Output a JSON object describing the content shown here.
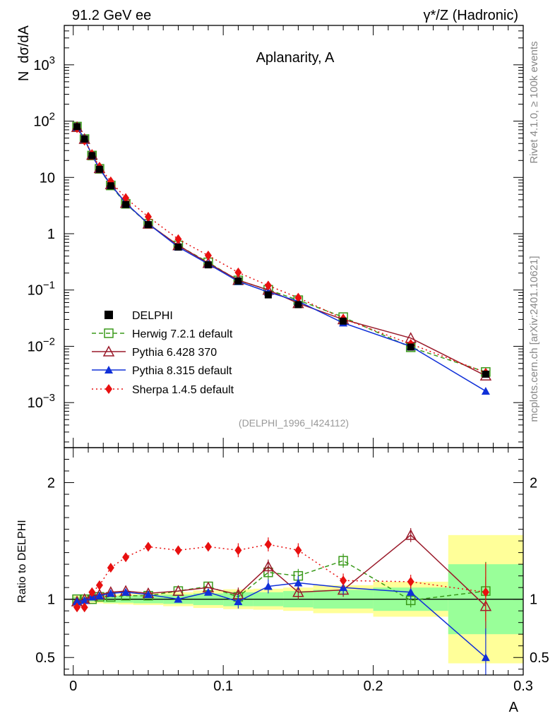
{
  "header": {
    "left": "91.2 GeV ee",
    "right": "γ*/Z (Hadronic)"
  },
  "side_text": {
    "rivet": "Rivet 4.1.0, ≥ 100k events",
    "mcplots": "mcplots.cern.ch [arXiv:2401.10621]"
  },
  "chart_data": {
    "type": "line",
    "title": "Aplanarity, A",
    "xlabel": "A",
    "ylabel_top": "N  dσ/dA",
    "ylabel_bottom": "Ratio to DELPHI",
    "analysis_id": "(DELPHI_1996_I424112)",
    "xlim": [
      -0.006,
      0.3
    ],
    "ylim_top_log10": [
      -3.8,
      3.7
    ],
    "ylim_bottom": [
      0.35,
      2.3
    ],
    "x_ticks": [
      "0",
      "0.1",
      "0.2",
      "0.3"
    ],
    "y_ticks_top": [
      {
        "base": "10",
        "exp": "−3",
        "v": 0.001
      },
      {
        "base": "10",
        "exp": "−2",
        "v": 0.01
      },
      {
        "base": "10",
        "exp": "−1",
        "v": 0.1
      },
      {
        "label": "1",
        "v": 1
      },
      {
        "label": "10",
        "v": 10
      },
      {
        "base": "10",
        "exp": "2",
        "v": 100
      },
      {
        "base": "10",
        "exp": "3",
        "v": 1000
      }
    ],
    "y_ticks_bottom": [
      "0.5",
      "1",
      "2"
    ],
    "bin_edges": [
      0,
      0.005,
      0.01,
      0.015,
      0.02,
      0.03,
      0.04,
      0.06,
      0.08,
      0.1,
      0.12,
      0.14,
      0.16,
      0.2,
      0.25,
      0.3
    ],
    "x": [
      0.0025,
      0.0075,
      0.0125,
      0.0175,
      0.025,
      0.035,
      0.05,
      0.07,
      0.09,
      0.11,
      0.13,
      0.15,
      0.18,
      0.225,
      0.275
    ],
    "data": {
      "name": "DELPHI",
      "values": [
        80,
        48,
        24.5,
        14,
        7.1,
        3.3,
        1.45,
        0.58,
        0.28,
        0.145,
        0.082,
        0.055,
        0.028,
        0.0097,
        0.0032
      ],
      "band_stat": [
        0.02,
        0.02,
        0.02,
        0.02,
        0.03,
        0.03,
        0.035,
        0.04,
        0.05,
        0.06,
        0.06,
        0.07,
        0.08,
        0.1,
        0.3
      ],
      "band_total": [
        0.03,
        0.03,
        0.03,
        0.035,
        0.04,
        0.045,
        0.05,
        0.06,
        0.075,
        0.085,
        0.09,
        0.1,
        0.12,
        0.15,
        0.55
      ]
    },
    "series": [
      {
        "name": "Herwig 7.2.1 default",
        "color": "#3a9a1a",
        "marker": "open-square",
        "dash": "6,4",
        "values": [
          80,
          48,
          24.5,
          14.2,
          7.2,
          3.4,
          1.5,
          0.62,
          0.31,
          0.148,
          0.101,
          0.066,
          0.033,
          0.0096,
          0.0035
        ],
        "ratio": [
          1.0,
          1.0,
          1.0,
          1.02,
          1.02,
          1.03,
          1.03,
          1.07,
          1.11,
          1.02,
          1.23,
          1.2,
          1.33,
          0.99,
          1.07
        ]
      },
      {
        "name": "Pythia 6.428 370",
        "color": "#9a1a2a",
        "marker": "open-triangle",
        "dash": "",
        "values": [
          78,
          48,
          25,
          14.5,
          7.5,
          3.5,
          1.5,
          0.62,
          0.3,
          0.15,
          0.1,
          0.058,
          0.03,
          0.014,
          0.003
        ],
        "ratio": [
          0.98,
          1.0,
          1.03,
          1.04,
          1.06,
          1.07,
          1.05,
          1.07,
          1.1,
          1.04,
          1.28,
          1.06,
          1.08,
          1.55,
          0.94
        ]
      },
      {
        "name": "Pythia 8.315 default",
        "color": "#1030d8",
        "marker": "filled-triangle",
        "dash": "",
        "values": [
          78,
          48,
          25,
          14.2,
          7.4,
          3.5,
          1.5,
          0.58,
          0.29,
          0.142,
          0.092,
          0.063,
          0.026,
          0.01,
          0.0016
        ],
        "ratio": [
          0.98,
          0.99,
          1.02,
          1.03,
          1.05,
          1.06,
          1.04,
          1.0,
          1.06,
          0.98,
          1.11,
          1.14,
          1.1,
          1.06,
          0.5
        ]
      },
      {
        "name": "Sherpa 1.4.5 default",
        "color": "#e81010",
        "marker": "filled-diamond",
        "dash": "2,4",
        "values": [
          75,
          45,
          26,
          15.5,
          8.5,
          4.3,
          2.0,
          0.8,
          0.41,
          0.205,
          0.12,
          0.073,
          0.031,
          0.011,
          0.0034
        ],
        "ratio": [
          0.93,
          0.93,
          1.06,
          1.12,
          1.27,
          1.36,
          1.45,
          1.42,
          1.45,
          1.42,
          1.47,
          1.42,
          1.16,
          1.15,
          1.06
        ]
      }
    ],
    "legend_position": "left, middle of top panel"
  }
}
